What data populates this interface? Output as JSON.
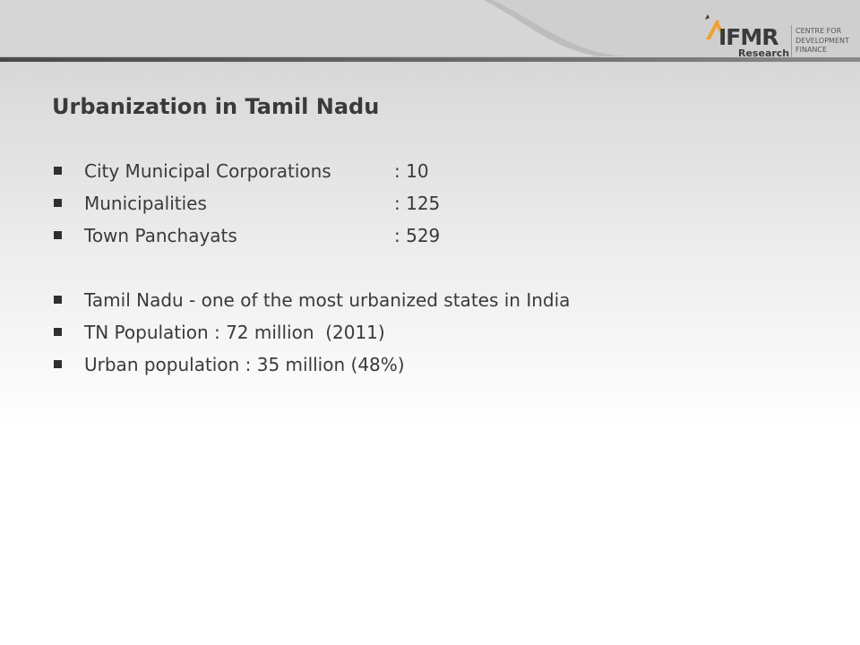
{
  "logo": {
    "wordmark": "IFMR",
    "sub": "Research",
    "tagline": [
      "CENTRE FOR",
      "DEVELOPMENT",
      "FINANCE"
    ],
    "accent_color": "#f0a030"
  },
  "slide": {
    "title": "Urbanization in Tamil Nadu",
    "stats": [
      {
        "term": "City Municipal Corporations",
        "value": ": 10"
      },
      {
        "term": "Municipalities",
        "value": ": 125"
      },
      {
        "term": "Town Panchayats",
        "value": ": 529"
      }
    ],
    "notes": [
      "Tamil Nadu - one of the most urbanized states in India",
      "TN Population : 72 million  (2011)",
      "Urban population : 35 million (48%)"
    ]
  },
  "colors": {
    "text": "#3a3a3a",
    "band_dark": "#555555",
    "band_light": "#c8c8c8"
  }
}
